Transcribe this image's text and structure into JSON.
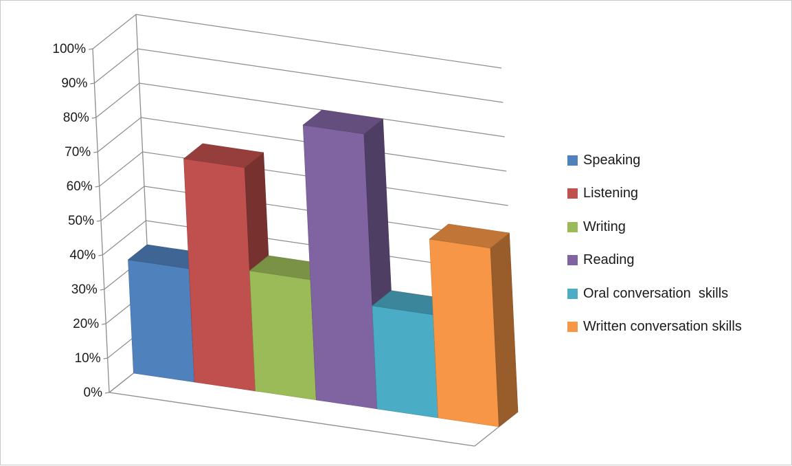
{
  "chart_data": {
    "type": "bar",
    "title": "",
    "xlabel": "",
    "ylabel": "",
    "ylim": [
      0,
      100
    ],
    "y_tick_labels": [
      "0%",
      "10%",
      "20%",
      "30%",
      "40%",
      "50%",
      "60%",
      "70%",
      "80%",
      "90%",
      "100%"
    ],
    "grid": true,
    "legend_position": "right",
    "projection": "3d-clustered-column",
    "series": [
      {
        "name": "Speaking",
        "value": 33,
        "color": "#4F81BD"
      },
      {
        "name": "Listening",
        "value": 65,
        "color": "#C0504D"
      },
      {
        "name": "Writing",
        "value": 35,
        "color": "#9BBB59"
      },
      {
        "name": "Reading",
        "value": 80,
        "color": "#8064A2"
      },
      {
        "name": "Oral conversation  skills",
        "value": 30,
        "color": "#4BACC6"
      },
      {
        "name": "Written conversation skills",
        "value": 52,
        "color": "#F79646"
      }
    ]
  }
}
